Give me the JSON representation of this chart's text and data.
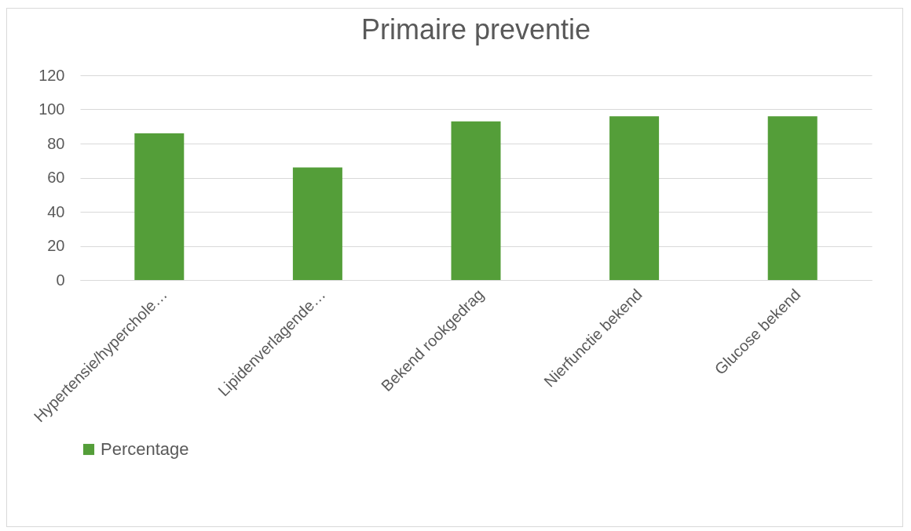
{
  "chart_data": {
    "type": "bar",
    "title": "Primaire preventie",
    "categories": [
      "Hypertensie/hyperchole…",
      "Lipidenverlagende…",
      "Bekend rookgedrag",
      "Nierfunctie bekend",
      "Glucose bekend"
    ],
    "series": [
      {
        "name": "Percentage",
        "color": "#549e39",
        "values": [
          86,
          66,
          93,
          96,
          96
        ]
      }
    ],
    "ylim": [
      0,
      120
    ],
    "yticks": [
      0,
      20,
      40,
      60,
      80,
      100,
      120
    ],
    "grid": "y",
    "legend": "bottom"
  }
}
